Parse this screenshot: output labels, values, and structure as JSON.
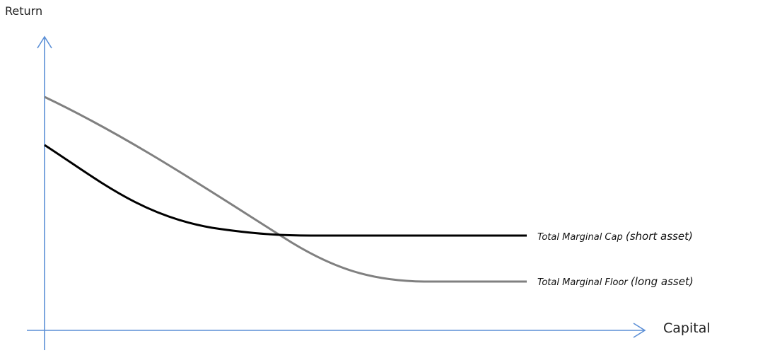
{
  "axes": {
    "y_label": "Return",
    "x_label": "Capital",
    "color": "#5b8fd6"
  },
  "curves": [
    {
      "id": "cap",
      "name": "Total Marginal Cap",
      "qualifier": "(short asset)",
      "color": "#000000"
    },
    {
      "id": "floor",
      "name": "Total Marginal Floor",
      "qualifier": "(long asset)",
      "color": "#808080"
    }
  ]
}
